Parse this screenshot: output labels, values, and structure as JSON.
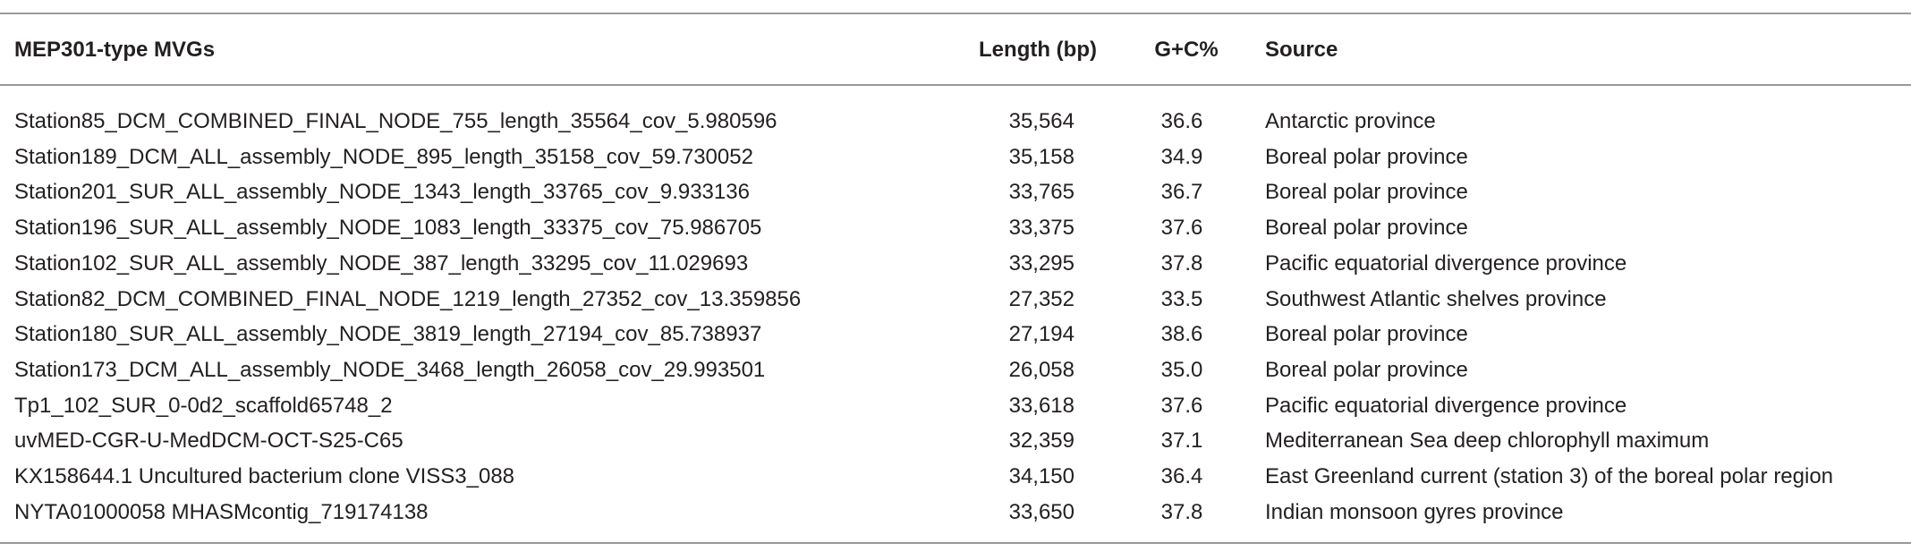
{
  "table": {
    "header": [
      "MEP301-type MVGs",
      "Length (bp)",
      "G+C%",
      "Source"
    ],
    "rows": [
      [
        "Station85_DCM_COMBINED_FINAL_NODE_755_length_35564_cov_5.980596",
        "35,564",
        "36.6",
        "Antarctic province"
      ],
      [
        "Station189_DCM_ALL_assembly_NODE_895_length_35158_cov_59.730052",
        "35,158",
        "34.9",
        "Boreal polar province"
      ],
      [
        "Station201_SUR_ALL_assembly_NODE_1343_length_33765_cov_9.933136",
        "33,765",
        "36.7",
        "Boreal polar province"
      ],
      [
        "Station196_SUR_ALL_assembly_NODE_1083_length_33375_cov_75.986705",
        "33,375",
        "37.6",
        "Boreal polar province"
      ],
      [
        "Station102_SUR_ALL_assembly_NODE_387_length_33295_cov_11.029693",
        "33,295",
        "37.8",
        "Pacific equatorial divergence province"
      ],
      [
        "Station82_DCM_COMBINED_FINAL_NODE_1219_length_27352_cov_13.359856",
        "27,352",
        "33.5",
        "Southwest Atlantic shelves province"
      ],
      [
        "Station180_SUR_ALL_assembly_NODE_3819_length_27194_cov_85.738937",
        "27,194",
        "38.6",
        "Boreal polar province"
      ],
      [
        "Station173_DCM_ALL_assembly_NODE_3468_length_26058_cov_29.993501",
        "26,058",
        "35.0",
        "Boreal polar province"
      ],
      [
        "Tp1_102_SUR_0-0d2_scaffold65748_2",
        "33,618",
        "37.6",
        "Pacific equatorial divergence province"
      ],
      [
        "uvMED-CGR-U-MedDCM-OCT-S25-C65",
        "32,359",
        "37.1",
        "Mediterranean Sea deep chlorophyll maximum"
      ],
      [
        "KX158644.1 Uncultured bacterium clone VISS3_088",
        "34,150",
        "36.4",
        "East Greenland current (station 3) of the boreal polar region"
      ],
      [
        "NYTA01000058 MHASMcontig_719174138",
        "33,650",
        "37.8",
        "Indian monsoon gyres province"
      ]
    ]
  }
}
